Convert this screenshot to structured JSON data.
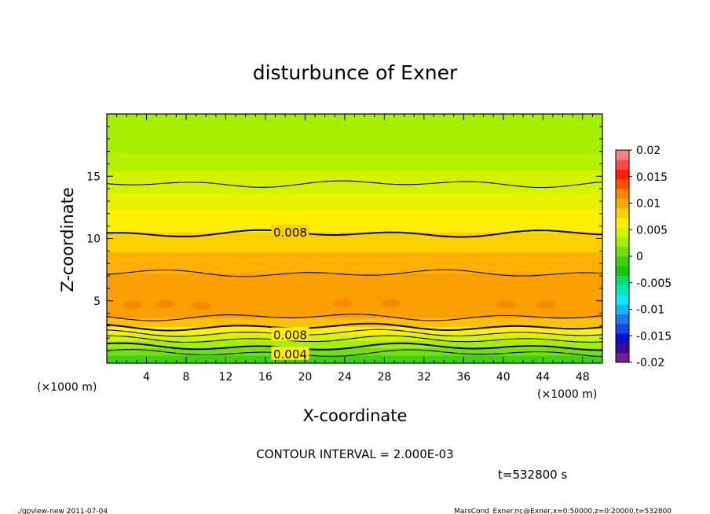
{
  "chart_data": {
    "type": "heatmap",
    "title": "disturbunce of Exner",
    "xlabel": "X-coordinate",
    "ylabel": "Z-coordinate",
    "x_unit": "(×1000 m)",
    "y_unit": "(×1000 m)",
    "xlim": [
      0,
      50
    ],
    "ylim": [
      0,
      20
    ],
    "x_ticks": [
      "4",
      "8",
      "12",
      "16",
      "20",
      "24",
      "28",
      "32",
      "36",
      "40",
      "44",
      "48"
    ],
    "y_ticks": [
      "5",
      "10",
      "15"
    ],
    "colorbar": {
      "range": [
        -0.02,
        0.02
      ],
      "labels": [
        "0.02",
        "0.015",
        "0.01",
        "0.005",
        "0",
        "-0.005",
        "-0.01",
        "-0.015",
        "-0.02"
      ],
      "colors": [
        "#7a1b90",
        "#3a0a9a",
        "#0a10c8",
        "#1646e8",
        "#1f78f0",
        "#14b8f4",
        "#0ee8f8",
        "#00e8c0",
        "#00e070",
        "#13c80b",
        "#3fd012",
        "#70e010",
        "#a4f000",
        "#d2f400",
        "#fff000",
        "#ffd000",
        "#ffa800",
        "#f48a00",
        "#ff5000",
        "#ff2000",
        "#ff4848",
        "#ff8080"
      ]
    },
    "contour_interval_text": "CONTOUR INTERVAL = 2.000E-03",
    "contour_labels": [
      "0.008",
      "0.008",
      "0.004"
    ],
    "z_bands": [
      {
        "z_top": 20.0,
        "z_bottom": 16.8,
        "value": 0.005,
        "color": "#a4f000"
      },
      {
        "z_top": 16.8,
        "z_bottom": 15.4,
        "value": 0.0055,
        "color": "#b4f200"
      },
      {
        "z_top": 15.4,
        "z_bottom": 13.6,
        "value": 0.006,
        "color": "#d2f400"
      },
      {
        "z_top": 13.6,
        "z_bottom": 12.3,
        "value": 0.0065,
        "color": "#e8f200"
      },
      {
        "z_top": 12.3,
        "z_bottom": 10.5,
        "value": 0.007,
        "color": "#fff000"
      },
      {
        "z_top": 10.5,
        "z_bottom": 8.9,
        "value": 0.0085,
        "color": "#ffd000"
      },
      {
        "z_top": 8.9,
        "z_bottom": 7.2,
        "value": 0.0095,
        "color": "#ffb000"
      },
      {
        "z_top": 7.2,
        "z_bottom": 3.6,
        "value": 0.0105,
        "color": "#f9a000"
      },
      {
        "z_top": 3.6,
        "z_bottom": 2.9,
        "value": 0.009,
        "color": "#ffc000"
      },
      {
        "z_top": 2.9,
        "z_bottom": 2.3,
        "value": 0.007,
        "color": "#fff000"
      },
      {
        "z_top": 2.3,
        "z_bottom": 1.8,
        "value": 0.006,
        "color": "#d2f400"
      },
      {
        "z_top": 1.8,
        "z_bottom": 1.2,
        "value": 0.005,
        "color": "#a4f000"
      },
      {
        "z_top": 1.2,
        "z_bottom": 0.6,
        "value": 0.003,
        "color": "#70e010"
      },
      {
        "z_top": 0.6,
        "z_bottom": 0.0,
        "value": 0.001,
        "color": "#3fd012"
      }
    ],
    "contour_levels_z": [
      14.4,
      10.4,
      7.2,
      3.7,
      2.9,
      2.4,
      1.9,
      1.3,
      0.8
    ],
    "patches": [
      {
        "x": 2.6,
        "z": 4.65,
        "value": 0.0115,
        "color": "#f48a00"
      },
      {
        "x": 6.0,
        "z": 4.75,
        "value": 0.0115,
        "color": "#f48a00"
      },
      {
        "x": 9.5,
        "z": 4.6,
        "value": 0.0115,
        "color": "#f48a00"
      },
      {
        "x": 23.8,
        "z": 4.8,
        "value": 0.0115,
        "color": "#f48a00"
      },
      {
        "x": 28.7,
        "z": 4.8,
        "value": 0.0115,
        "color": "#f48a00"
      },
      {
        "x": 40.3,
        "z": 4.7,
        "value": 0.0115,
        "color": "#f48a00"
      },
      {
        "x": 44.3,
        "z": 4.7,
        "value": 0.0115,
        "color": "#f48a00"
      }
    ]
  },
  "footer": {
    "time": "t=532800 s",
    "left_note": "./gpview-new   2011-07-04",
    "right_note": "MarsCond_Exner.nc@Exner,x=0:50000,z=0:20000,t=532800"
  }
}
